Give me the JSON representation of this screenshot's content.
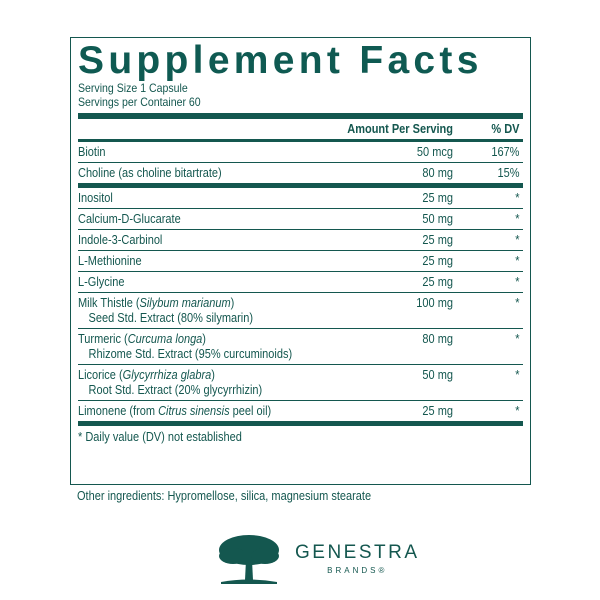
{
  "title": "Supplement Facts",
  "serving_size": "Serving Size 1 Capsule",
  "servings_per_container": "Servings per Container 60",
  "header": {
    "amount": "Amount Per Serving",
    "dv": "% DV"
  },
  "group1": [
    {
      "name": "Biotin",
      "amount": "50 mcg",
      "dv": "167%"
    },
    {
      "name": "Choline (as choline bitartrate)",
      "amount": "80 mg",
      "dv": "15%"
    }
  ],
  "group2": [
    {
      "name": "Inositol",
      "amount": "25 mg",
      "dv": "*"
    },
    {
      "name": "Calcium-D-Glucarate",
      "amount": "50 mg",
      "dv": "*"
    },
    {
      "name": "Indole-3-Carbinol",
      "amount": "25 mg",
      "dv": "*"
    },
    {
      "name": "L-Methionine",
      "amount": "25 mg",
      "dv": "*"
    },
    {
      "name": "L-Glycine",
      "amount": "25 mg",
      "dv": "*"
    },
    {
      "name": "Milk Thistle (",
      "latin": "Silybum marianum",
      "name_end": ")",
      "sub": "Seed Std. Extract (80% silymarin)",
      "amount": "100 mg",
      "dv": "*"
    },
    {
      "name": "Turmeric (",
      "latin": "Curcuma longa",
      "name_end": ")",
      "sub": "Rhizome Std. Extract (95% curcuminoids)",
      "amount": "80 mg",
      "dv": "*"
    },
    {
      "name": "Licorice (",
      "latin": "Glycyrrhiza glabra",
      "name_end": ")",
      "sub": "Root Std. Extract (20% glycyrrhizin)",
      "amount": "50 mg",
      "dv": "*"
    },
    {
      "name": "Limonene (from ",
      "latin": "Citrus sinensis",
      "name_end": " peel oil)",
      "amount": "25 mg",
      "dv": "*"
    }
  ],
  "footnote": "* Daily value (DV) not established",
  "other_ingredients": "Other ingredients: Hypromellose, silica, magnesium stearate",
  "brand": {
    "name": "GENESTRA",
    "sub": "BRANDS®",
    "icon": "tree-icon"
  },
  "colors": {
    "primary": "#14574f"
  }
}
